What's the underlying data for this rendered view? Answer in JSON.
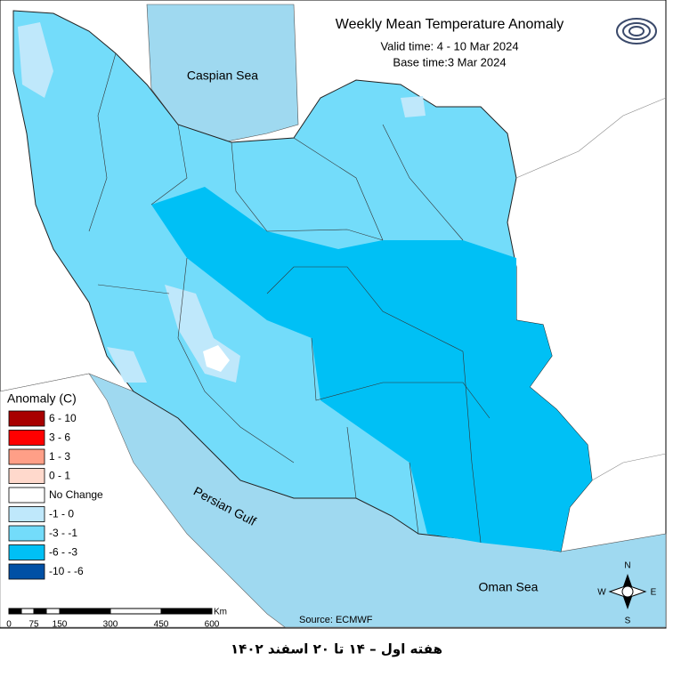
{
  "header": {
    "title": "Weekly Mean Temperature Anomaly",
    "valid_time": "Valid time: 4 - 10 Mar 2024",
    "base_time": "Base time:3 Mar 2024"
  },
  "labels": {
    "caspian": "Caspian Sea",
    "gulf": "Persian Gulf",
    "oman": "Oman Sea"
  },
  "legend": {
    "title": "Anomaly (C)",
    "items": [
      {
        "label": "6 - 10",
        "color": "#a80000"
      },
      {
        "label": "3 - 6",
        "color": "#ff0000"
      },
      {
        "label": "1 - 3",
        "color": "#ff9f87"
      },
      {
        "label": "0 - 1",
        "color": "#ffd9cc"
      },
      {
        "label": "No Change",
        "color": "#ffffff"
      },
      {
        "label": "-1 - 0",
        "color": "#bfe8fb"
      },
      {
        "label": "-3 - -1",
        "color": "#73dcfa"
      },
      {
        "label": "-6 - -3",
        "color": "#00c0f5"
      },
      {
        "label": "-10 - -6",
        "color": "#0050a5"
      }
    ]
  },
  "scale": {
    "labels": [
      "0",
      "75",
      "150",
      "300",
      "450",
      "600"
    ],
    "unit": "Km"
  },
  "compass": {
    "n": "N",
    "e": "E",
    "s": "S",
    "w": "W"
  },
  "source": "Source: ECMWF",
  "footer": "هفته اول – ۱۴ تا ۲۰ اسفند ۱۴۰۲"
}
